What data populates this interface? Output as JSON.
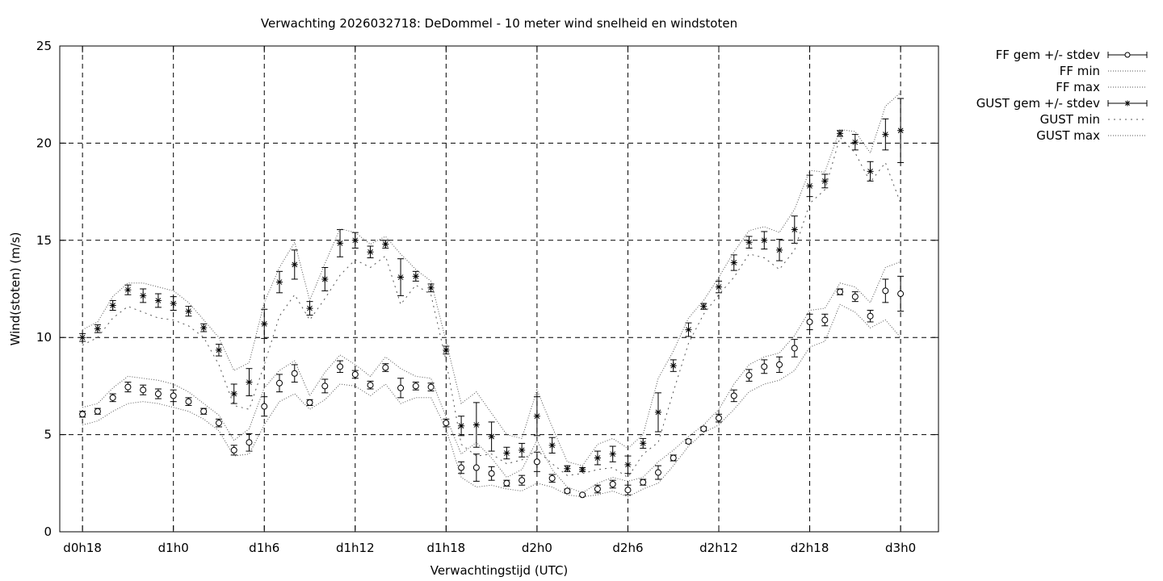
{
  "chart_data": {
    "type": "line",
    "title": "Verwachting 2026032718: DeDommel - 10 meter wind snelheid en windstoten",
    "xlabel": "Verwachtingstijd (UTC)",
    "ylabel": "Wind(stoten) (m/s)",
    "ylim": [
      0,
      25
    ],
    "xlim": [
      -1.5,
      56.5
    ],
    "grid": true,
    "legend_position": "outside-top-right",
    "yticks": [
      0,
      5,
      10,
      15,
      20,
      25
    ],
    "xticks": [
      {
        "label": "d0h18",
        "x": 0
      },
      {
        "label": "d1h0",
        "x": 6
      },
      {
        "label": "d1h6",
        "x": 12
      },
      {
        "label": "d1h12",
        "x": 18
      },
      {
        "label": "d1h18",
        "x": 24
      },
      {
        "label": "d2h0",
        "x": 30
      },
      {
        "label": "d2h6",
        "x": 36
      },
      {
        "label": "d2h12",
        "x": 42
      },
      {
        "label": "d2h18",
        "x": 48
      },
      {
        "label": "d3h0",
        "x": 54
      }
    ],
    "x": [
      0,
      1,
      2,
      3,
      4,
      5,
      6,
      7,
      8,
      9,
      10,
      11,
      12,
      13,
      14,
      15,
      16,
      17,
      18,
      19,
      20,
      21,
      22,
      23,
      24,
      25,
      26,
      27,
      28,
      29,
      30,
      31,
      32,
      33,
      34,
      35,
      36,
      37,
      38,
      39,
      40,
      41,
      42,
      43,
      44,
      45,
      46,
      47,
      48,
      49,
      50,
      51,
      52,
      53,
      54
    ],
    "series": [
      {
        "name": "FF gem +/- stdev",
        "style": "errorbars",
        "marker": "circle",
        "values": [
          6.05,
          6.2,
          6.9,
          7.45,
          7.3,
          7.1,
          7.0,
          6.7,
          6.2,
          5.6,
          4.2,
          4.6,
          6.45,
          7.65,
          8.15,
          6.65,
          7.5,
          8.5,
          8.1,
          7.55,
          8.45,
          7.4,
          7.5,
          7.45,
          5.6,
          3.3,
          3.3,
          3.0,
          2.5,
          2.65,
          3.6,
          2.75,
          2.1,
          1.9,
          2.2,
          2.45,
          2.15,
          2.55,
          3.05,
          3.8,
          4.65,
          5.3,
          5.85,
          7.0,
          8.05,
          8.5,
          8.6,
          9.45,
          10.8,
          10.9,
          12.35,
          12.1,
          11.1,
          12.4,
          12.25
        ],
        "stdev": [
          0.15,
          0.15,
          0.2,
          0.25,
          0.25,
          0.25,
          0.3,
          0.2,
          0.15,
          0.2,
          0.25,
          0.45,
          0.5,
          0.45,
          0.45,
          0.15,
          0.35,
          0.3,
          0.2,
          0.2,
          0.2,
          0.5,
          0.2,
          0.2,
          0.2,
          0.3,
          0.7,
          0.35,
          0.15,
          0.25,
          0.5,
          0.2,
          0.1,
          0.05,
          0.2,
          0.2,
          0.25,
          0.15,
          0.35,
          0.15,
          0.1,
          0.1,
          0.2,
          0.3,
          0.3,
          0.35,
          0.4,
          0.45,
          0.4,
          0.3,
          0.15,
          0.25,
          0.3,
          0.6,
          0.9
        ]
      },
      {
        "name": "FF min",
        "style": "dotted",
        "values": [
          5.5,
          5.7,
          6.2,
          6.6,
          6.7,
          6.6,
          6.4,
          6.2,
          5.8,
          5.2,
          3.9,
          4.0,
          5.5,
          6.7,
          7.1,
          6.3,
          6.8,
          7.6,
          7.5,
          7.0,
          7.6,
          6.6,
          6.9,
          6.9,
          5.3,
          2.8,
          2.3,
          2.4,
          2.2,
          2.1,
          2.5,
          2.3,
          1.9,
          1.8,
          1.9,
          2.1,
          1.8,
          2.2,
          2.5,
          3.4,
          4.4,
          5.1,
          5.5,
          6.3,
          7.2,
          7.6,
          7.8,
          8.3,
          9.5,
          9.8,
          11.7,
          11.3,
          10.5,
          10.9,
          10.0
        ]
      },
      {
        "name": "FF max",
        "style": "dotted",
        "values": [
          6.4,
          6.6,
          7.4,
          8.0,
          7.9,
          7.8,
          7.6,
          7.2,
          6.6,
          6.0,
          4.7,
          5.3,
          7.4,
          8.3,
          8.8,
          7.0,
          8.2,
          9.1,
          8.6,
          8.0,
          9.0,
          8.4,
          8.0,
          7.9,
          5.9,
          4.0,
          4.6,
          3.8,
          2.8,
          3.2,
          4.7,
          3.2,
          2.3,
          2.0,
          2.5,
          2.8,
          2.6,
          2.8,
          3.6,
          4.2,
          4.9,
          5.5,
          6.3,
          7.6,
          8.6,
          9.0,
          9.2,
          10.1,
          11.4,
          11.5,
          12.8,
          12.6,
          11.8,
          13.6,
          13.9
        ]
      },
      {
        "name": "GUST gem +/- stdev",
        "style": "errorbars",
        "marker": "star",
        "values": [
          10.0,
          10.45,
          11.65,
          12.45,
          12.15,
          11.9,
          11.75,
          11.35,
          10.5,
          9.35,
          7.1,
          7.7,
          10.7,
          12.85,
          13.75,
          11.5,
          13.0,
          14.85,
          15.0,
          14.4,
          14.8,
          13.1,
          13.15,
          12.55,
          9.35,
          5.45,
          5.5,
          4.9,
          4.05,
          4.2,
          5.95,
          4.45,
          3.25,
          3.2,
          3.8,
          4.0,
          3.45,
          4.55,
          6.15,
          8.55,
          10.4,
          11.6,
          12.6,
          13.85,
          14.9,
          15.0,
          14.5,
          15.55,
          17.8,
          18.05,
          20.5,
          20.05,
          18.55,
          20.45,
          20.65
        ],
        "stdev": [
          0.2,
          0.2,
          0.25,
          0.25,
          0.35,
          0.35,
          0.35,
          0.25,
          0.2,
          0.3,
          0.5,
          0.7,
          0.75,
          0.55,
          0.75,
          0.35,
          0.6,
          0.7,
          0.4,
          0.3,
          0.2,
          0.95,
          0.25,
          0.2,
          0.2,
          0.5,
          1.15,
          0.75,
          0.3,
          0.35,
          1.0,
          0.4,
          0.15,
          0.1,
          0.35,
          0.4,
          0.45,
          0.25,
          1.0,
          0.3,
          0.35,
          0.15,
          0.3,
          0.4,
          0.3,
          0.45,
          0.55,
          0.7,
          0.55,
          0.35,
          0.15,
          0.4,
          0.5,
          0.8,
          1.65
        ]
      },
      {
        "name": "GUST min",
        "style": "dotted",
        "values": [
          9.6,
          10.0,
          11.0,
          11.6,
          11.3,
          11.0,
          10.9,
          10.6,
          10.0,
          8.6,
          6.5,
          6.3,
          8.6,
          11.1,
          12.2,
          10.9,
          12.0,
          13.2,
          14.0,
          13.6,
          14.2,
          11.7,
          12.7,
          12.2,
          8.8,
          4.5,
          3.9,
          4.0,
          3.5,
          3.7,
          4.2,
          3.5,
          2.9,
          3.0,
          3.2,
          3.3,
          2.8,
          4.0,
          4.6,
          7.2,
          9.7,
          11.2,
          12.2,
          13.1,
          14.3,
          14.1,
          13.5,
          14.5,
          16.9,
          17.6,
          20.3,
          19.5,
          18.0,
          19.0,
          16.9
        ]
      },
      {
        "name": "GUST max",
        "style": "dotted",
        "values": [
          10.4,
          10.8,
          12.1,
          12.8,
          12.8,
          12.6,
          12.4,
          11.8,
          10.9,
          10.0,
          8.3,
          8.7,
          11.8,
          13.6,
          14.9,
          11.9,
          13.8,
          15.6,
          15.4,
          14.8,
          15.2,
          14.3,
          13.5,
          12.9,
          9.8,
          6.6,
          7.2,
          6.1,
          5.0,
          4.8,
          7.3,
          5.4,
          3.6,
          3.4,
          4.5,
          4.8,
          4.3,
          5.0,
          7.9,
          9.3,
          11.0,
          11.9,
          13.1,
          14.4,
          15.5,
          15.7,
          15.4,
          16.6,
          18.6,
          18.5,
          20.7,
          20.6,
          19.5,
          21.9,
          22.6
        ]
      }
    ]
  }
}
